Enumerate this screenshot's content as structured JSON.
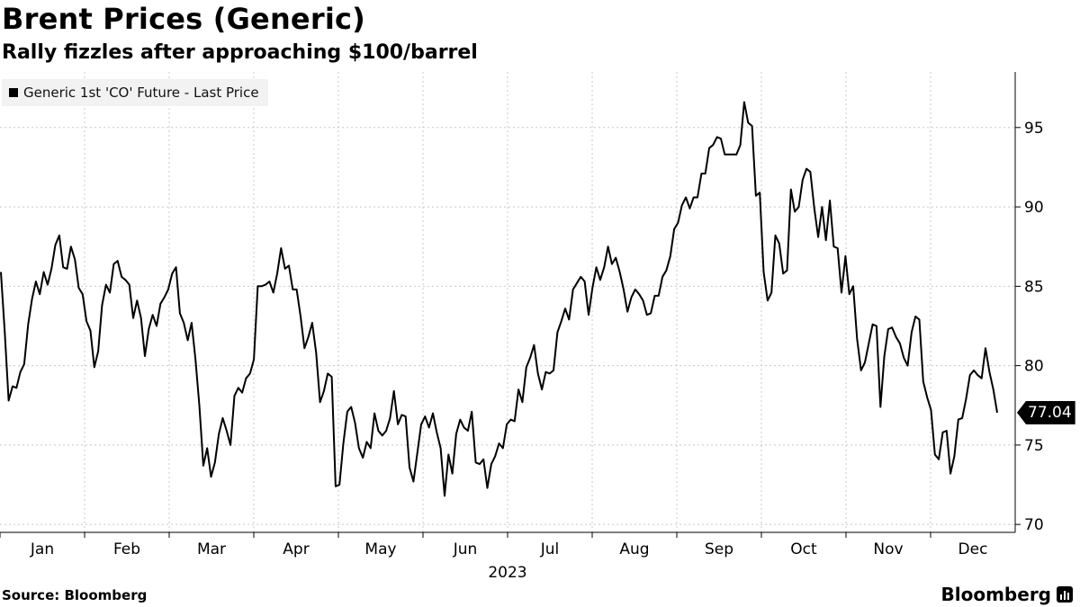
{
  "title": "Brent Prices (Generic)",
  "subtitle": "Rally fizzles after approaching $100/barrel",
  "legend_label": "Generic 1st 'CO' Future - Last Price",
  "source": "Source: Bloomberg",
  "brand": "Bloomberg",
  "last_value_label": "77.04",
  "chart_data": {
    "type": "line",
    "title": "Brent Prices (Generic)",
    "subtitle": "Rally fizzles after approaching $100/barrel",
    "x_axis_year": "2023",
    "x_tick_labels": [
      "Jan",
      "Feb",
      "Mar",
      "Apr",
      "May",
      "Jun",
      "Jul",
      "Aug",
      "Sep",
      "Oct",
      "Nov",
      "Dec"
    ],
    "y_ticks": [
      70,
      75,
      80,
      85,
      90,
      95
    ],
    "ylim": [
      69.5,
      98.5
    ],
    "y_axis_position": "right",
    "grid": true,
    "legend_position": "top-left",
    "series": [
      {
        "name": "Generic 1st 'CO' Future - Last Price",
        "color": "#000000",
        "last_value": 77.04,
        "values": [
          85.9,
          82.1,
          77.8,
          78.7,
          78.6,
          79.6,
          80.1,
          82.6,
          84.2,
          85.3,
          84.5,
          85.9,
          85.1,
          86.1,
          87.6,
          88.2,
          86.2,
          86.1,
          87.5,
          86.7,
          84.9,
          84.5,
          82.8,
          82.2,
          79.9,
          80.9,
          83.8,
          85.1,
          84.6,
          86.4,
          86.6,
          85.6,
          85.4,
          85.1,
          83.0,
          84.1,
          83.0,
          80.6,
          82.3,
          83.2,
          82.5,
          83.9,
          84.3,
          84.8,
          85.8,
          86.2,
          83.3,
          82.7,
          81.6,
          82.7,
          80.4,
          77.5,
          73.7,
          74.8,
          73.0,
          73.9,
          75.7,
          76.7,
          75.9,
          75.0,
          78.1,
          78.6,
          78.3,
          79.2,
          79.5,
          80.4,
          85.0,
          85.0,
          85.1,
          85.3,
          84.6,
          85.8,
          87.4,
          86.1,
          86.3,
          84.8,
          84.8,
          83.1,
          81.1,
          81.8,
          82.7,
          80.8,
          77.7,
          78.4,
          79.5,
          79.3,
          72.4,
          72.5,
          75.1,
          77.1,
          77.4,
          76.4,
          74.8,
          74.2,
          75.2,
          74.8,
          77.0,
          75.9,
          75.6,
          75.9,
          76.7,
          78.4,
          76.3,
          76.9,
          76.8,
          73.6,
          72.7,
          74.5,
          76.3,
          76.8,
          76.1,
          77.0,
          75.8,
          74.8,
          71.8,
          74.4,
          73.2,
          75.7,
          76.6,
          76.1,
          75.9,
          77.1,
          73.9,
          73.8,
          74.1,
          72.3,
          73.8,
          74.3,
          75.1,
          74.8,
          76.3,
          76.6,
          76.5,
          78.5,
          77.7,
          79.9,
          80.5,
          81.3,
          79.5,
          78.5,
          79.6,
          79.5,
          79.7,
          82.1,
          82.8,
          83.6,
          82.9,
          84.8,
          85.2,
          85.6,
          85.3,
          83.2,
          84.9,
          86.2,
          85.4,
          86.2,
          87.5,
          86.4,
          86.8,
          85.9,
          84.8,
          83.4,
          84.3,
          84.8,
          84.5,
          84.1,
          83.2,
          83.3,
          84.4,
          84.4,
          85.6,
          86.0,
          86.9,
          88.6,
          89.0,
          90.1,
          90.6,
          89.9,
          90.6,
          90.6,
          92.1,
          92.1,
          93.7,
          93.9,
          94.4,
          94.3,
          93.3,
          93.3,
          93.3,
          93.3,
          93.9,
          96.6,
          95.3,
          95.1,
          90.7,
          90.9,
          85.9,
          84.1,
          84.6,
          88.2,
          87.7,
          85.8,
          86.0,
          91.1,
          89.7,
          90.0,
          91.7,
          92.4,
          92.2,
          89.9,
          88.1,
          90.0,
          87.9,
          90.4,
          87.5,
          87.4,
          84.6,
          86.9,
          84.5,
          85.0,
          81.7,
          79.7,
          80.2,
          81.4,
          82.6,
          82.5,
          77.4,
          80.6,
          82.3,
          82.4,
          81.8,
          81.4,
          80.5,
          80.0,
          82.1,
          83.1,
          82.9,
          79.0,
          78.0,
          77.2,
          74.4,
          74.1,
          75.8,
          75.9,
          73.2,
          74.3,
          76.6,
          76.7,
          77.9,
          79.4,
          79.7,
          79.4,
          79.2,
          81.1,
          79.6,
          78.5,
          77.04
        ]
      }
    ]
  }
}
